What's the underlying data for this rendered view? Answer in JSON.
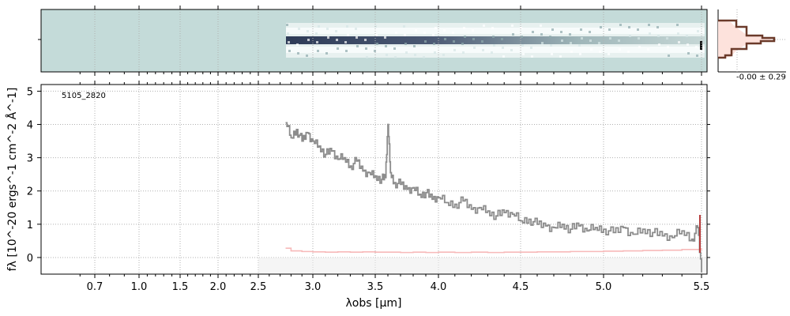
{
  "chart_data": {
    "type": "line",
    "object_label": "5105_2820",
    "xlabel": "λobs [μm]",
    "ylabel": "fλ [10^-20 ergs^-1 cm^-2 Å^-1]",
    "x_tick_labels": [
      "0.7",
      "1.0",
      "1.5",
      "2.0",
      "2.5",
      "3.0",
      "3.5",
      "4.0",
      "4.5",
      "5.0",
      "5.5"
    ],
    "y_tick_labels": [
      "0",
      "1",
      "2",
      "3",
      "4",
      "5"
    ],
    "ylim": [
      -0.5,
      5.2
    ],
    "grid": true,
    "series": [
      {
        "x": [
          2.75,
          2.8,
          2.85,
          2.9,
          2.95,
          3.0,
          3.05,
          3.1,
          3.15,
          3.2,
          3.25,
          3.3,
          3.35,
          3.4,
          3.45,
          3.5,
          3.55,
          3.58,
          3.6,
          3.62,
          3.65,
          3.7,
          3.75,
          3.8,
          3.85,
          3.9,
          3.95,
          4.0,
          4.05,
          4.1,
          4.15,
          4.2,
          4.25,
          4.3,
          4.35,
          4.4,
          4.45,
          4.5,
          4.55,
          4.6,
          4.65,
          4.7,
          4.75,
          4.8,
          4.85,
          4.9,
          4.95,
          5.0,
          5.05,
          5.1,
          5.15,
          5.2,
          5.25,
          5.3,
          5.35,
          5.4,
          5.45,
          5.48,
          5.5
        ],
        "y": [
          4.05,
          3.6,
          3.85,
          3.5,
          3.75,
          3.5,
          3.35,
          3.1,
          3.2,
          2.95,
          3.0,
          2.75,
          2.9,
          2.6,
          2.55,
          2.45,
          2.35,
          2.4,
          4.0,
          2.55,
          2.25,
          2.2,
          2.05,
          2.1,
          1.9,
          1.95,
          1.75,
          1.8,
          1.65,
          1.6,
          1.7,
          1.45,
          1.5,
          1.4,
          1.25,
          1.35,
          1.3,
          1.1,
          1.15,
          1.0,
          0.95,
          0.9,
          1.0,
          0.85,
          0.95,
          0.8,
          0.9,
          0.85,
          0.75,
          0.9,
          0.7,
          0.85,
          0.75,
          0.65,
          0.6,
          0.8,
          0.55,
          0.9,
          -0.45
        ]
      },
      {
        "x": [
          2.75,
          2.8,
          2.9,
          3.0,
          3.1,
          3.2,
          3.3,
          3.4,
          3.5,
          3.6,
          3.7,
          3.8,
          3.9,
          4.0,
          4.1,
          4.2,
          4.3,
          4.4,
          4.5,
          4.6,
          4.7,
          4.8,
          4.9,
          5.0,
          5.1,
          5.2,
          5.3,
          5.4,
          5.5
        ],
        "y": [
          0.28,
          0.2,
          0.18,
          0.17,
          0.16,
          0.17,
          0.16,
          0.17,
          0.16,
          0.16,
          0.15,
          0.16,
          0.15,
          0.16,
          0.15,
          0.16,
          0.15,
          0.16,
          0.16,
          0.17,
          0.17,
          0.18,
          0.18,
          0.19,
          0.2,
          0.21,
          0.22,
          0.24,
          0.28
        ]
      }
    ],
    "colors": {
      "spectrum": "#8c8c8c",
      "error": "#f7b9b9",
      "band": "#ececec",
      "grid": "#b0b0b0",
      "twod_bg": "#c4dbd9",
      "twod_trace": "#2e3b57",
      "profile": "#6b3a2a",
      "profile_fill": "#fde2dc"
    },
    "profile_label": "-0.00 ± 0.29"
  }
}
